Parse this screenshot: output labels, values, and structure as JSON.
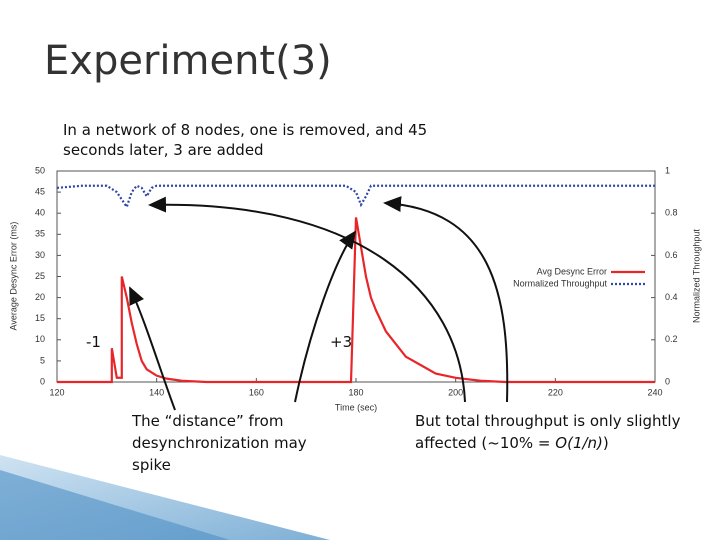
{
  "title": "Experiment(3)",
  "subtitle": "In a network of 8 nodes, one is removed, and 45 seconds later, 3 are added",
  "annotations": {
    "minus": "-1",
    "plus": "+3",
    "left_note": "The “distance” from desynchronization may spike",
    "right_note": [
      "But total throughput is only slightly affected (~10% = ",
      "O(1/n)",
      ")"
    ]
  },
  "chart_data": {
    "type": "line",
    "xlabel": "Time (sec)",
    "ylabel": "Average Desync Error (ms)",
    "y2label": "Normalized Throughput",
    "xlim": [
      120,
      240
    ],
    "xticks": [
      120,
      140,
      160,
      180,
      200,
      220,
      240
    ],
    "ylim": [
      0,
      50
    ],
    "yticks": [
      0,
      5,
      10,
      15,
      20,
      25,
      30,
      35,
      40,
      45,
      50
    ],
    "y2lim": [
      0,
      1
    ],
    "y2ticks": [
      0,
      0.2,
      0.4,
      0.6,
      0.8,
      1
    ],
    "legend": "right",
    "series": [
      {
        "name": "Avg Desync Error",
        "color": "#e8262a",
        "x": [
          120,
          131,
          131,
          132,
          133,
          133,
          134,
          135,
          136,
          137,
          138,
          140,
          142,
          145,
          150,
          179,
          180,
          181,
          182,
          183,
          184,
          186,
          188,
          190,
          193,
          196,
          200,
          205,
          210,
          240
        ],
        "values": [
          0,
          0,
          8,
          1,
          1,
          25,
          20,
          14,
          9,
          5,
          3,
          1.5,
          0.8,
          0.3,
          0,
          0,
          39,
          32,
          25,
          20,
          17,
          12,
          9,
          6,
          4,
          2,
          1,
          0.3,
          0,
          0
        ]
      },
      {
        "name": "Normalized Throughput",
        "color": "#3245a8",
        "axis": "y2",
        "x": [
          120,
          125,
          130,
          132,
          134,
          135,
          136,
          137,
          138,
          139,
          140,
          145,
          150,
          160,
          170,
          178,
          180,
          181,
          182,
          183,
          185,
          190,
          200,
          210,
          220,
          230,
          240
        ],
        "values": [
          0.92,
          0.93,
          0.93,
          0.9,
          0.83,
          0.9,
          0.93,
          0.92,
          0.88,
          0.92,
          0.93,
          0.93,
          0.93,
          0.93,
          0.93,
          0.93,
          0.9,
          0.84,
          0.88,
          0.93,
          0.93,
          0.93,
          0.93,
          0.93,
          0.93,
          0.93,
          0.93
        ]
      }
    ]
  }
}
